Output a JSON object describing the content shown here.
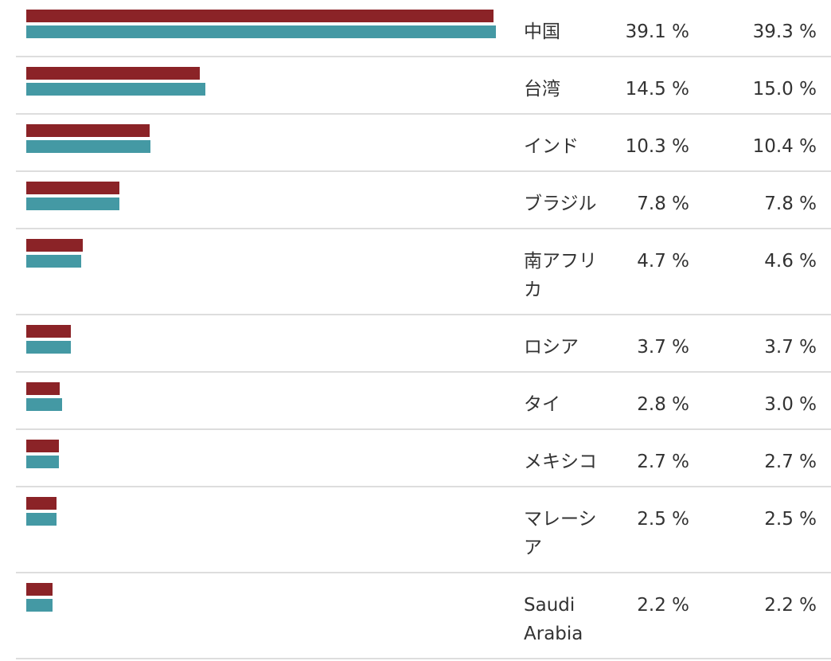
{
  "colors": {
    "series_1": "#8b2327",
    "series_2": "#4499a4",
    "row_divider": "#dddddd",
    "text": "#333333"
  },
  "chart_data": {
    "type": "bar",
    "orientation": "horizontal",
    "title": "",
    "categories": [
      "中国",
      "台湾",
      "インド",
      "ブラジル",
      "南アフリカ",
      "ロシア",
      "タイ",
      "メキシコ",
      "マレーシア",
      "Saudi Arabia"
    ],
    "series": [
      {
        "color": "#8b2327",
        "values": [
          39.1,
          14.5,
          10.3,
          7.8,
          4.7,
          3.7,
          2.8,
          2.7,
          2.5,
          2.2
        ],
        "labels": [
          "39.1 %",
          "14.5 %",
          "10.3 %",
          "7.8 %",
          "4.7 %",
          "3.7 %",
          "2.8 %",
          "2.7 %",
          "2.5 %",
          "2.2 %"
        ]
      },
      {
        "color": "#4499a4",
        "values": [
          39.3,
          15.0,
          10.4,
          7.8,
          4.6,
          3.7,
          3.0,
          2.7,
          2.5,
          2.2
        ],
        "labels": [
          "39.3 %",
          "15.0 %",
          "10.4 %",
          "7.8 %",
          "4.6 %",
          "3.7 %",
          "3.0 %",
          "2.7 %",
          "2.5 %",
          "2.2 %"
        ]
      }
    ],
    "unit": "%",
    "xlim": [
      0,
      39.3
    ],
    "grid": false,
    "legend": "none"
  }
}
